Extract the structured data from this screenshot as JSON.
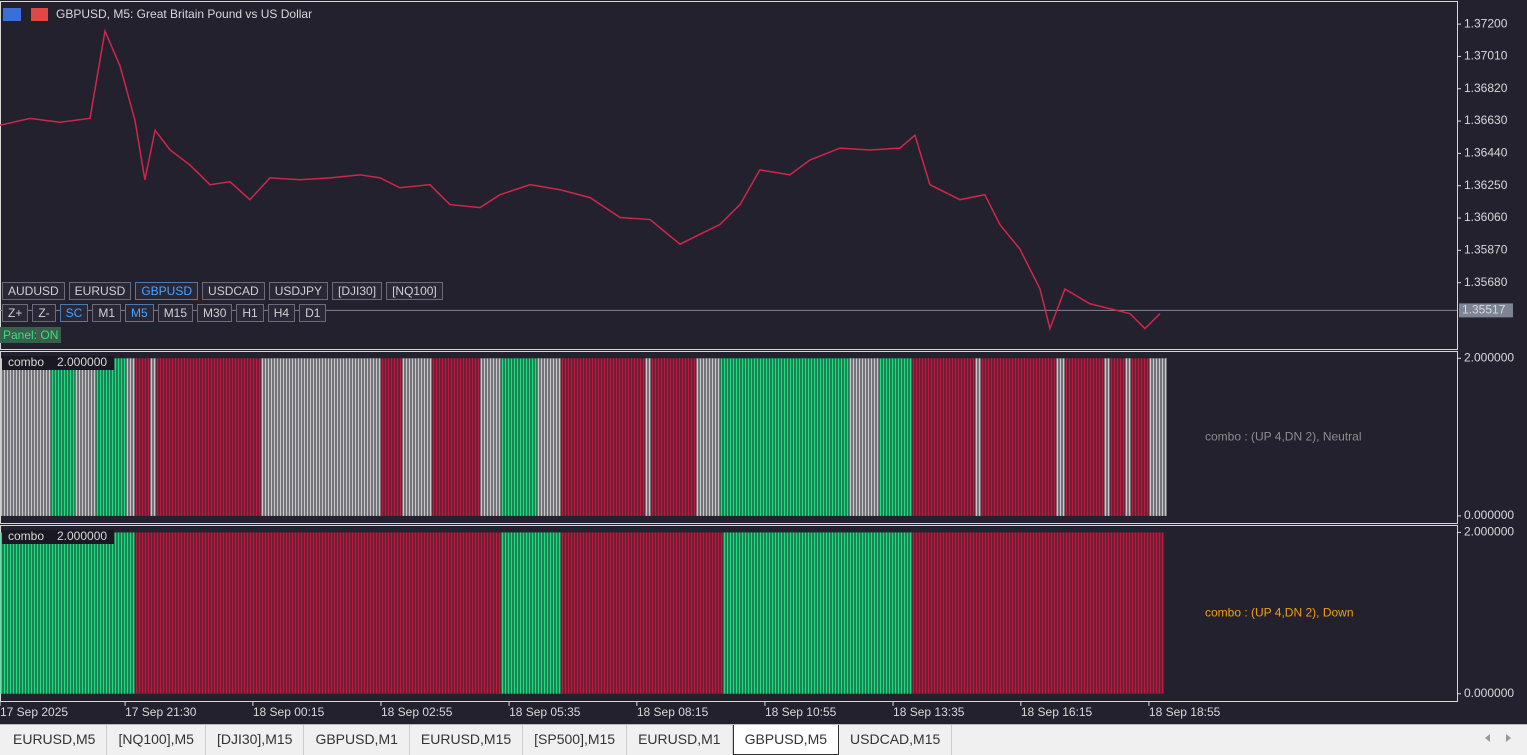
{
  "header": {
    "title": "GBPUSD, M5:  Great Britain Pound vs US Dollar"
  },
  "symbol_buttons": [
    {
      "label": "AUDUSD"
    },
    {
      "label": "EURUSD"
    },
    {
      "label": "GBPUSD",
      "selected": true
    },
    {
      "label": "USDCAD"
    },
    {
      "label": "USDJPY"
    },
    {
      "label": "[DJI30]"
    },
    {
      "label": "[NQ100]"
    }
  ],
  "tool_buttons": [
    {
      "label": "Z+"
    },
    {
      "label": "Z-"
    },
    {
      "label": "SC",
      "selected": true
    },
    {
      "label": "M1"
    },
    {
      "label": "M5",
      "selected": true
    },
    {
      "label": "M15"
    },
    {
      "label": "M30"
    },
    {
      "label": "H1"
    },
    {
      "label": "H4"
    },
    {
      "label": "D1"
    }
  ],
  "panel_status": "Panel: ON",
  "chart_data": [
    {
      "type": "line",
      "color": "#d0264a",
      "x": [
        0,
        10,
        20,
        30,
        35,
        40,
        45,
        48.3,
        51.7,
        56.7,
        63.3,
        70,
        76.7,
        83.3,
        90,
        100,
        110,
        120,
        126.7,
        133.3,
        143.3,
        150,
        160,
        166.7,
        176.7,
        186.7,
        196.7,
        206.7,
        216.7,
        226.7,
        233.3,
        240,
        246.7,
        253.3,
        263.3,
        270,
        280,
        290,
        300,
        305,
        310,
        320,
        328.3,
        333.3,
        340,
        346.7,
        350,
        355,
        363.3,
        370,
        376.7,
        381.7,
        386.7
      ],
      "values": [
        1.36605,
        1.36646,
        1.36623,
        1.36646,
        1.37159,
        1.36955,
        1.36634,
        1.36285,
        1.36576,
        1.3646,
        1.36372,
        1.36256,
        1.36273,
        1.36168,
        1.36296,
        1.36285,
        1.36296,
        1.36314,
        1.36296,
        1.36238,
        1.36256,
        1.36139,
        1.36121,
        1.36197,
        1.36256,
        1.36226,
        1.3618,
        1.36063,
        1.36051,
        1.35906,
        1.35964,
        1.36022,
        1.36139,
        1.36343,
        1.36314,
        1.36401,
        1.36471,
        1.3646,
        1.36471,
        1.36547,
        1.36256,
        1.36168,
        1.36197,
        1.36022,
        1.35877,
        1.35643,
        1.3541,
        1.35643,
        1.35556,
        1.35527,
        1.35498,
        1.3541,
        1.35498
      ],
      "xlim": [
        0,
        485.7
      ],
      "ylim": [
        1.3529,
        1.3733
      ],
      "yticks": [
        {
          "value": 1.372,
          "label": "1.37200"
        },
        {
          "value": 1.3701,
          "label": "1.37010"
        },
        {
          "value": 1.3682,
          "label": "1.36820"
        },
        {
          "value": 1.3663,
          "label": "1.36630"
        },
        {
          "value": 1.3644,
          "label": "1.36440"
        },
        {
          "value": 1.3625,
          "label": "1.36250"
        },
        {
          "value": 1.3606,
          "label": "1.36060"
        },
        {
          "value": 1.3587,
          "label": "1.35870"
        },
        {
          "value": 1.3568,
          "label": "1.35680"
        }
      ],
      "current_price": {
        "value": 1.35517,
        "label": "1.35517"
      },
      "xticks": [
        {
          "value": 0,
          "label": "17 Sep 2025"
        },
        {
          "value": 41.7,
          "label": "17 Sep 21:30"
        },
        {
          "value": 84.3,
          "label": "18 Sep 00:15"
        },
        {
          "value": 127,
          "label": "18 Sep 02:55"
        },
        {
          "value": 169.7,
          "label": "18 Sep 05:35"
        },
        {
          "value": 212.3,
          "label": "18 Sep 08:15"
        },
        {
          "value": 255,
          "label": "18 Sep 10:55"
        },
        {
          "value": 297.7,
          "label": "18 Sep 13:35"
        },
        {
          "value": 340.3,
          "label": "18 Sep 16:15"
        },
        {
          "value": 383,
          "label": "18 Sep 18:55"
        }
      ]
    },
    {
      "type": "bar",
      "name": "combo",
      "value": 2,
      "value_label": "2.000000",
      "status": "combo : (UP 4,DN 2), Neutral",
      "status_color": "#8c8c8c",
      "ylim": [
        -0.09,
        2.08
      ],
      "yticks": [
        {
          "value": 2,
          "label": "2.000000"
        },
        {
          "value": 0,
          "label": "0.000000"
        }
      ],
      "segments": [
        {
          "color": "#c8c8c8",
          "bars": 17
        },
        {
          "color": "#18e07c",
          "bars": 8
        },
        {
          "color": "#c8c8c8",
          "bars": 7
        },
        {
          "color": "#18e07c",
          "bars": 10
        },
        {
          "color": "#c8c8c8",
          "bars": 3
        },
        {
          "color": "#c0193d",
          "bars": 5
        },
        {
          "color": "#c8c8c8",
          "bars": 2
        },
        {
          "color": "#c0193d",
          "bars": 35
        },
        {
          "color": "#c8c8c8",
          "bars": 40
        },
        {
          "color": "#c0193d",
          "bars": 7
        },
        {
          "color": "#c8c8c8",
          "bars": 10
        },
        {
          "color": "#c0193d",
          "bars": 16
        },
        {
          "color": "#c8c8c8",
          "bars": 7
        },
        {
          "color": "#18e07c",
          "bars": 12
        },
        {
          "color": "#c8c8c8",
          "bars": 8
        },
        {
          "color": "#c0193d",
          "bars": 28
        },
        {
          "color": "#c8c8c8",
          "bars": 2
        },
        {
          "color": "#c0193d",
          "bars": 15
        },
        {
          "color": "#c8c8c8",
          "bars": 8
        },
        {
          "color": "#18e07c",
          "bars": 43
        },
        {
          "color": "#c8c8c8",
          "bars": 10
        },
        {
          "color": "#18e07c",
          "bars": 11
        },
        {
          "color": "#c0193d",
          "bars": 21
        },
        {
          "color": "#c8c8c8",
          "bars": 2
        },
        {
          "color": "#c0193d",
          "bars": 25
        },
        {
          "color": "#c8c8c8",
          "bars": 3
        },
        {
          "color": "#c0193d",
          "bars": 13
        },
        {
          "color": "#c8c8c8",
          "bars": 2
        },
        {
          "color": "#c0193d",
          "bars": 5
        },
        {
          "color": "#c8c8c8",
          "bars": 2
        },
        {
          "color": "#c0193d",
          "bars": 6
        },
        {
          "color": "#c8c8c8",
          "bars": 6
        }
      ]
    },
    {
      "type": "bar",
      "name": "combo",
      "value": 2,
      "value_label": "2.000000",
      "status": "combo : (UP 4,DN 2), Down",
      "status_color": "#f39c12",
      "ylim": [
        -0.09,
        2.08
      ],
      "yticks": [
        {
          "value": 2,
          "label": "2.000000"
        },
        {
          "value": 0,
          "label": "0.000000"
        }
      ],
      "segments": [
        {
          "color": "#18e07c",
          "bars": 45
        },
        {
          "color": "#c0193d",
          "bars": 122
        },
        {
          "color": "#18e07c",
          "bars": 20
        },
        {
          "color": "#c0193d",
          "bars": 54
        },
        {
          "color": "#18e07c",
          "bars": 63
        },
        {
          "color": "#c0193d",
          "bars": 84
        }
      ]
    }
  ],
  "tabs": [
    {
      "label": "EURUSD,M5"
    },
    {
      "label": "[NQ100],M5"
    },
    {
      "label": "[DJI30],M15"
    },
    {
      "label": "GBPUSD,M1"
    },
    {
      "label": "EURUSD,M15"
    },
    {
      "label": "[SP500],M15"
    },
    {
      "label": "EURUSD,M1"
    },
    {
      "label": "GBPUSD,M5",
      "selected": true
    },
    {
      "label": "USDCAD,M15"
    }
  ]
}
